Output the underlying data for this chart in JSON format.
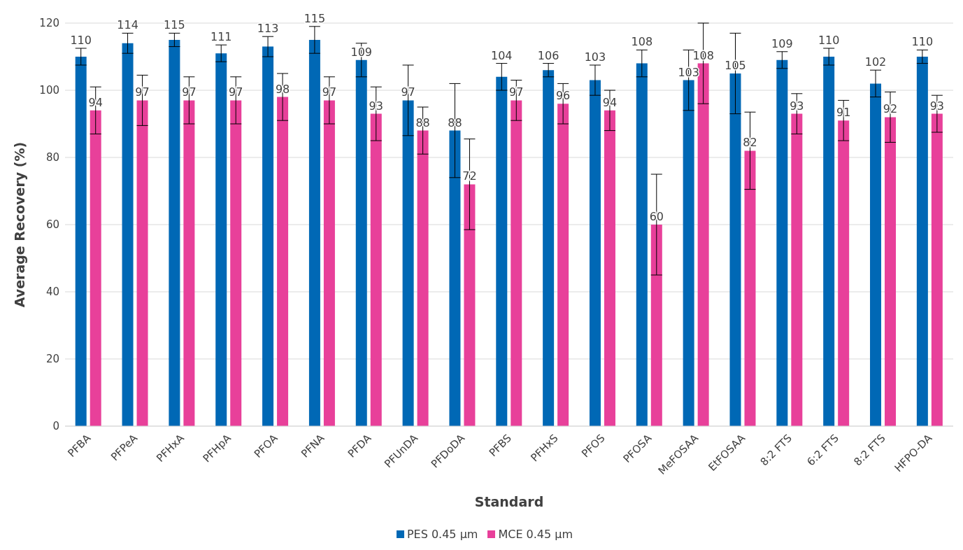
{
  "chart_data": {
    "type": "bar",
    "xlabel": "Standard",
    "ylabel": "Average Recovery (%)",
    "categories": [
      "PFBA",
      "PFPeA",
      "PFHxA",
      "PFHpA",
      "PFOA",
      "PFNA",
      "PFDA",
      "PFUnDA",
      "PFDoDA",
      "PFBS",
      "PFHxS",
      "PFOS",
      "PFOSA",
      "MeFOSAA",
      "EtFOSAA",
      "8:2 FTS",
      "6:2 FTS",
      "8:2 FTS",
      "HFPO-DA"
    ],
    "series": [
      {
        "name": "PES 0.45 µm",
        "color": "#0068b5",
        "values": [
          110,
          114,
          115,
          111,
          113,
          115,
          109,
          97,
          88,
          104,
          106,
          103,
          108,
          103,
          105,
          109,
          110,
          102,
          110
        ],
        "errors": [
          2.5,
          3,
          2,
          2.5,
          3,
          4,
          5,
          10.5,
          14,
          4,
          2,
          4.5,
          4,
          9,
          12,
          2.5,
          2.5,
          4,
          2
        ]
      },
      {
        "name": "MCE 0.45 µm",
        "color": "#e8409a",
        "values": [
          94,
          97,
          97,
          97,
          98,
          97,
          93,
          88,
          72,
          97,
          96,
          94,
          60,
          108,
          82,
          93,
          91,
          92,
          93
        ],
        "errors": [
          7,
          7.5,
          7,
          7,
          7,
          7,
          8,
          7,
          13.5,
          6,
          6,
          6,
          15,
          12,
          11.5,
          6,
          6,
          7.5,
          5.5
        ]
      }
    ],
    "ylim": [
      0,
      120
    ],
    "yticks": [
      0,
      20,
      40,
      60,
      80,
      100,
      120
    ],
    "grid": "y",
    "legend": "bottom",
    "data_labels": true
  }
}
